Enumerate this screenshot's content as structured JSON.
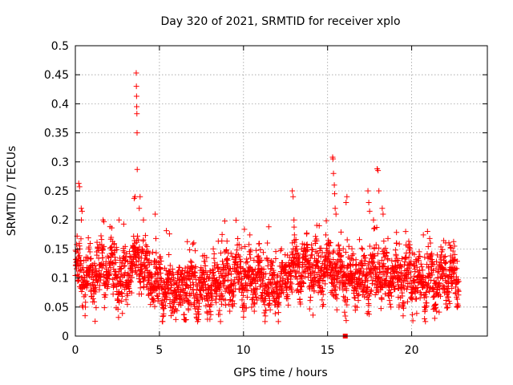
{
  "chart_data": {
    "type": "scatter",
    "title": "Day 320 of 2021, SRMTID for receiver xplo",
    "xlabel": "GPS time / hours",
    "ylabel": "SRMTID / TECUs",
    "xlim": [
      0,
      24.5
    ],
    "ylim": [
      0,
      0.5
    ],
    "x_ticks": [
      0,
      5,
      10,
      15,
      20
    ],
    "y_ticks": [
      0,
      0.05,
      0.1,
      0.15,
      0.2,
      0.25,
      0.3,
      0.35,
      0.4,
      0.45,
      0.5
    ],
    "x_tick_labels": [
      "0",
      "5",
      "10",
      "15",
      "20"
    ],
    "y_tick_labels": [
      "0",
      "0.05",
      "0.1",
      "0.15",
      "0.2",
      "0.25",
      "0.3",
      "0.35",
      "0.4",
      "0.45",
      "0.5"
    ],
    "grid": true,
    "marker": "plus",
    "series": [
      {
        "name": "SRMTID",
        "color": "#ff0000",
        "description": "dense plus-marker scatter sampled roughly every 30 s from 0 to ~22.8 h",
        "baseline": [
          [
            0.0,
            0.115
          ],
          [
            0.5,
            0.105
          ],
          [
            1.0,
            0.1
          ],
          [
            1.5,
            0.11
          ],
          [
            2.0,
            0.12
          ],
          [
            2.5,
            0.105
          ],
          [
            3.0,
            0.1
          ],
          [
            3.5,
            0.13
          ],
          [
            4.0,
            0.12
          ],
          [
            4.5,
            0.1
          ],
          [
            5.0,
            0.09
          ],
          [
            5.5,
            0.075
          ],
          [
            6.0,
            0.08
          ],
          [
            7.0,
            0.085
          ],
          [
            8.0,
            0.08
          ],
          [
            9.0,
            0.1
          ],
          [
            10.0,
            0.1
          ],
          [
            11.0,
            0.1
          ],
          [
            12.0,
            0.08
          ],
          [
            12.5,
            0.095
          ],
          [
            13.0,
            0.12
          ],
          [
            14.0,
            0.115
          ],
          [
            15.0,
            0.12
          ],
          [
            15.5,
            0.11
          ],
          [
            16.0,
            0.1
          ],
          [
            17.0,
            0.1
          ],
          [
            18.0,
            0.11
          ],
          [
            19.0,
            0.1
          ],
          [
            20.0,
            0.1
          ],
          [
            21.0,
            0.09
          ],
          [
            22.0,
            0.1
          ],
          [
            22.8,
            0.1
          ]
        ],
        "peaks": [
          {
            "x": 0.2,
            "y": 0.263
          },
          {
            "x": 0.25,
            "y": 0.257
          },
          {
            "x": 0.35,
            "y": 0.22
          },
          {
            "x": 0.4,
            "y": 0.215
          },
          {
            "x": 1.65,
            "y": 0.2
          },
          {
            "x": 1.7,
            "y": 0.197
          },
          {
            "x": 2.6,
            "y": 0.2
          },
          {
            "x": 3.5,
            "y": 0.237
          },
          {
            "x": 3.55,
            "y": 0.24
          },
          {
            "x": 3.62,
            "y": 0.453
          },
          {
            "x": 3.63,
            "y": 0.43
          },
          {
            "x": 3.64,
            "y": 0.413
          },
          {
            "x": 3.65,
            "y": 0.395
          },
          {
            "x": 3.66,
            "y": 0.383
          },
          {
            "x": 3.67,
            "y": 0.35
          },
          {
            "x": 3.68,
            "y": 0.287
          },
          {
            "x": 3.8,
            "y": 0.22
          },
          {
            "x": 3.85,
            "y": 0.24
          },
          {
            "x": 4.05,
            "y": 0.2
          },
          {
            "x": 4.75,
            "y": 0.21
          },
          {
            "x": 12.9,
            "y": 0.25
          },
          {
            "x": 12.95,
            "y": 0.24
          },
          {
            "x": 14.5,
            "y": 0.19
          },
          {
            "x": 15.3,
            "y": 0.308
          },
          {
            "x": 15.32,
            "y": 0.305
          },
          {
            "x": 15.35,
            "y": 0.28
          },
          {
            "x": 15.4,
            "y": 0.26
          },
          {
            "x": 15.42,
            "y": 0.245
          },
          {
            "x": 15.45,
            "y": 0.22
          },
          {
            "x": 15.5,
            "y": 0.21
          },
          {
            "x": 16.1,
            "y": 0.23
          },
          {
            "x": 16.15,
            "y": 0.24
          },
          {
            "x": 17.4,
            "y": 0.25
          },
          {
            "x": 17.45,
            "y": 0.23
          },
          {
            "x": 17.5,
            "y": 0.215
          },
          {
            "x": 17.95,
            "y": 0.288
          },
          {
            "x": 18.0,
            "y": 0.285
          },
          {
            "x": 18.05,
            "y": 0.25
          },
          {
            "x": 18.25,
            "y": 0.22
          },
          {
            "x": 18.3,
            "y": 0.21
          }
        ],
        "outliers": [
          {
            "x": 16.05,
            "y": 0.0
          }
        ],
        "ranges": {
          "x_min": 0.0,
          "x_max": 22.8,
          "y_min": 0.0,
          "y_max": 0.453
        }
      }
    ]
  }
}
